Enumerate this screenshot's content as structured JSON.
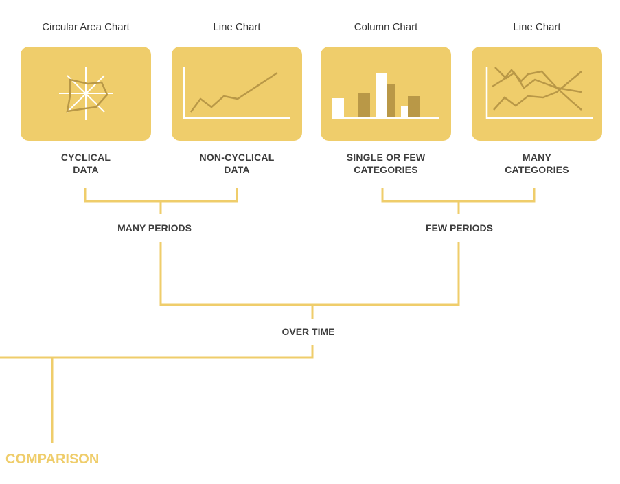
{
  "colors": {
    "accent": "#efcd6b",
    "dark_accent": "#b99847",
    "white": "#ffffff",
    "line": "#efcd6b",
    "root_text": "#efcd6b"
  },
  "cards": [
    {
      "title": "Circular Area Chart",
      "icon": "radar-chart-icon",
      "label_lines": [
        "CYCLICAL",
        "DATA"
      ]
    },
    {
      "title": "Line Chart",
      "icon": "line-chart-icon",
      "label_lines": [
        "NON-CYCLICAL",
        "DATA"
      ]
    },
    {
      "title": "Column Chart",
      "icon": "column-chart-icon",
      "label_lines": [
        "SINGLE OR FEW",
        "CATEGORIES"
      ]
    },
    {
      "title": "Line Chart",
      "icon": "multi-line-chart-icon",
      "label_lines": [
        "MANY",
        "CATEGORIES"
      ]
    }
  ],
  "nodes": {
    "many_periods": "MANY PERIODS",
    "few_periods": "FEW PERIODS",
    "over_time": "OVER TIME",
    "root": "COMPARISON"
  }
}
